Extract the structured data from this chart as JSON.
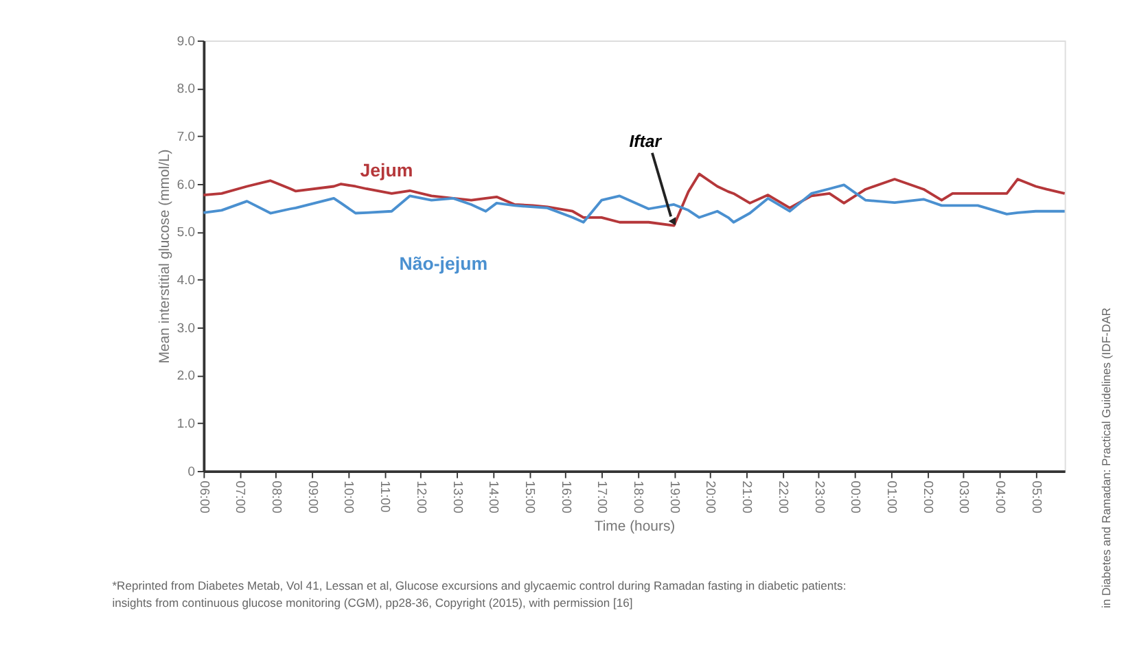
{
  "chart_data": {
    "type": "line",
    "xlabel": "Time (hours)",
    "ylabel": "Mean interstitial glucose (mmol/L)",
    "x": [
      "2015-01-01T06:00",
      "2015-01-01T06:30",
      "2015-01-01T07:12",
      "2015-01-01T07:51",
      "2015-01-01T08:24",
      "2015-01-01T08:33",
      "2015-01-01T09:36",
      "2015-01-01T09:48",
      "2015-01-01T10:12",
      "2015-01-01T10:30",
      "2015-01-01T11:12",
      "2015-01-01T11:42",
      "2015-01-01T12:18",
      "2015-01-01T12:54",
      "2015-01-01T13:24",
      "2015-01-01T13:48",
      "2015-01-01T14:06",
      "2015-01-01T14:36",
      "2015-01-01T15:06",
      "2015-01-01T15:30",
      "2015-01-01T16:12",
      "2015-01-01T16:30",
      "2015-01-01T17:00",
      "2015-01-01T17:30",
      "2015-01-01T18:18",
      "2015-01-01T19:00",
      "2015-01-01T19:24",
      "2015-01-01T19:42",
      "2015-01-01T20:12",
      "2015-01-01T20:30",
      "2015-01-01T20:39",
      "2015-01-01T21:06",
      "2015-01-01T21:36",
      "2015-01-01T22:12",
      "2015-01-01T22:48",
      "2015-01-01T23:18",
      "2015-01-01T23:42",
      "2015-01-02T00:18",
      "2015-01-02T01:06",
      "2015-01-02T01:54",
      "2015-01-02T02:24",
      "2015-01-02T02:42",
      "2015-01-02T03:24",
      "2015-01-02T04:12",
      "2015-01-02T04:30",
      "2015-01-02T05:00",
      "2015-01-02T05:18",
      "2015-01-02T05:48"
    ],
    "series": [
      {
        "name": "Jejum",
        "color": "#b5373a",
        "values": [
          5.77,
          5.8,
          5.95,
          6.07,
          5.9,
          5.85,
          5.95,
          6.0,
          5.95,
          5.9,
          5.8,
          5.86,
          5.75,
          5.7,
          5.66,
          5.7,
          5.73,
          5.57,
          5.55,
          5.52,
          5.43,
          5.3,
          5.3,
          5.2,
          5.2,
          5.13,
          5.84,
          6.21,
          5.95,
          5.84,
          5.8,
          5.6,
          5.77,
          5.5,
          5.75,
          5.8,
          5.6,
          5.89,
          6.1,
          5.89,
          5.66,
          5.8,
          5.8,
          5.8,
          6.1,
          5.95,
          5.89,
          5.8
        ]
      },
      {
        "name": "Não-jejum",
        "color": "#4a90d0",
        "values": [
          5.4,
          5.45,
          5.64,
          5.39,
          5.48,
          5.5,
          5.7,
          5.6,
          5.39,
          5.4,
          5.43,
          5.75,
          5.66,
          5.7,
          5.57,
          5.43,
          5.6,
          5.55,
          5.52,
          5.5,
          5.3,
          5.2,
          5.66,
          5.75,
          5.48,
          5.57,
          5.45,
          5.3,
          5.43,
          5.3,
          5.2,
          5.39,
          5.7,
          5.43,
          5.8,
          5.9,
          5.98,
          5.66,
          5.61,
          5.68,
          5.55,
          5.55,
          5.55,
          5.37,
          5.4,
          5.43,
          5.43,
          5.43
        ]
      }
    ],
    "xlim": [
      "2015-01-01T06:00",
      "2015-01-02T05:48"
    ],
    "xticks": [
      {
        "value": "2015-01-01T06:00",
        "label": "06:00"
      },
      {
        "value": "2015-01-01T07:00",
        "label": "07:00"
      },
      {
        "value": "2015-01-01T08:00",
        "label": "08:00"
      },
      {
        "value": "2015-01-01T09:00",
        "label": "09:00"
      },
      {
        "value": "2015-01-01T10:00",
        "label": "10:00"
      },
      {
        "value": "2015-01-01T11:00",
        "label": "11:00"
      },
      {
        "value": "2015-01-01T12:00",
        "label": "12:00"
      },
      {
        "value": "2015-01-01T13:00",
        "label": "13:00"
      },
      {
        "value": "2015-01-01T14:00",
        "label": "14:00"
      },
      {
        "value": "2015-01-01T15:00",
        "label": "15:00"
      },
      {
        "value": "2015-01-01T16:00",
        "label": "16:00"
      },
      {
        "value": "2015-01-01T17:00",
        "label": "17:00"
      },
      {
        "value": "2015-01-01T18:00",
        "label": "18:00"
      },
      {
        "value": "2015-01-01T19:00",
        "label": "19:00"
      },
      {
        "value": "2015-01-01T20:00",
        "label": "20:00"
      },
      {
        "value": "2015-01-01T21:00",
        "label": "21:00"
      },
      {
        "value": "2015-01-01T22:00",
        "label": "22:00"
      },
      {
        "value": "2015-01-01T23:00",
        "label": "23:00"
      },
      {
        "value": "2015-01-02T00:00",
        "label": "00:00"
      },
      {
        "value": "2015-01-02T01:00",
        "label": "01:00"
      },
      {
        "value": "2015-01-02T02:00",
        "label": "02:00"
      },
      {
        "value": "2015-01-02T03:00",
        "label": "03:00"
      },
      {
        "value": "2015-01-02T04:00",
        "label": "04:00"
      },
      {
        "value": "2015-01-02T05:00",
        "label": "05:00"
      }
    ],
    "ylim": [
      0,
      9
    ],
    "yticks": [
      0,
      {
        "value": 1,
        "label": "1.0"
      },
      {
        "value": 2,
        "label": "2.0"
      },
      {
        "value": 3,
        "label": "3.0"
      },
      {
        "value": 4,
        "label": "4.0"
      },
      {
        "value": 5,
        "label": "5.0"
      },
      {
        "value": 6,
        "label": "6.0"
      },
      {
        "value": 7,
        "label": "7.0"
      },
      {
        "value": 8,
        "label": "8.0"
      },
      {
        "value": 9,
        "label": "9.0"
      }
    ],
    "grid": false,
    "legend": false,
    "line_style": "solid",
    "marker": "none",
    "annotations": [
      {
        "text": "Iftar",
        "x": "2015-01-01T19:00",
        "y": 5.2
      },
      "*Reprinted from Diabetes Metab, Vol 41, Lessan et al, Glucose excursions and glycaemic control during Ramadan fasting in diabetic patients:",
      "insights from continuous glucose monitoring (CGM), pp28-36, Copyright (2015), with permission [16]",
      "in Diabetes and Ramadan: Practical Guidelines (IDF-DAR"
    ]
  }
}
